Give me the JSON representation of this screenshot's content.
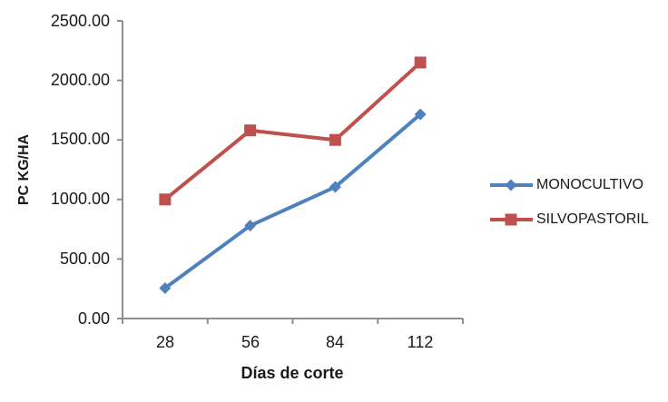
{
  "chart_data": {
    "type": "line",
    "title": "",
    "categories": [
      "28",
      "56",
      "84",
      "112"
    ],
    "series": [
      {
        "name": "MONOCULTIVO",
        "color": "#4F81BD",
        "marker": "diamond",
        "values": [
          255,
          780,
          1105,
          1715
        ]
      },
      {
        "name": "SILVOPASTORIL",
        "color": "#C0504D",
        "marker": "square",
        "values": [
          1000,
          1580,
          1500,
          2150
        ]
      }
    ],
    "xlabel": "Días de corte",
    "ylabel": "PC KG/HA",
    "ylim": [
      0,
      2500
    ],
    "y_tick_step": 500,
    "y_tick_labels": [
      "0.00",
      "500.00",
      "1000.00",
      "1500.00",
      "2000.00",
      "2500.00"
    ],
    "grid": false,
    "legend_position": "right",
    "axis_color": "#8E8E8E",
    "text_color": "#1A1A1A",
    "background_color": "#FFFFFF",
    "line_width": 4
  }
}
